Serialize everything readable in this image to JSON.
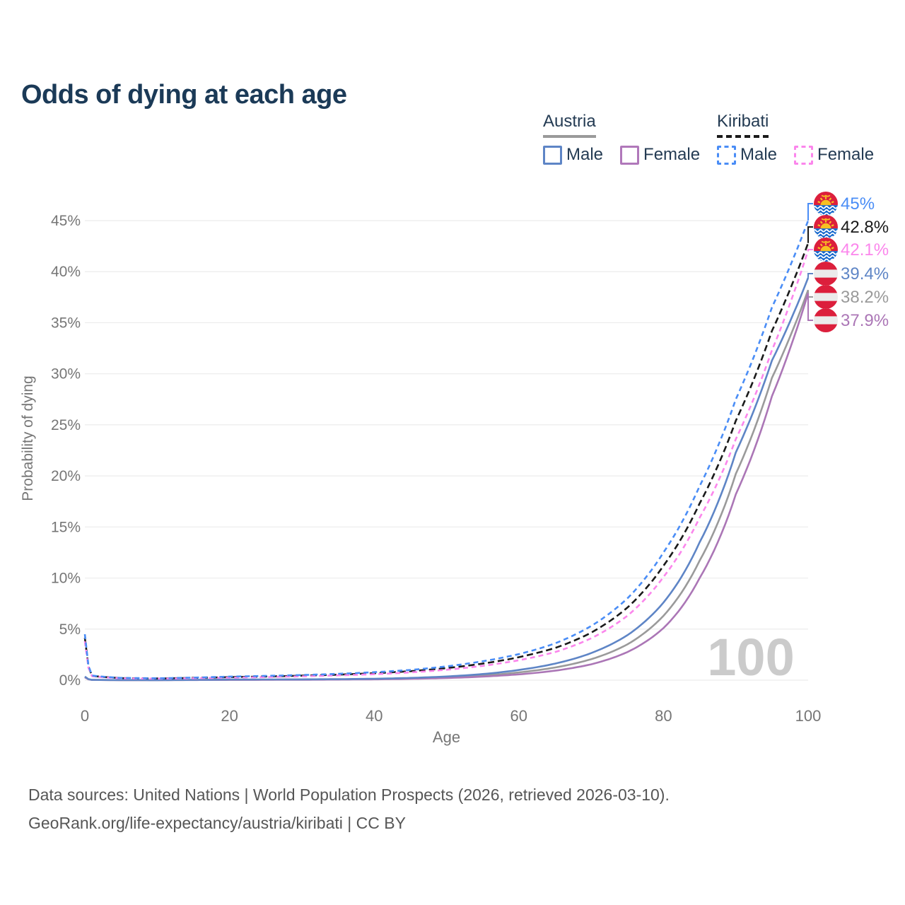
{
  "title": "Odds of dying at each age",
  "legend": {
    "groups": [
      {
        "label": "Austria",
        "underline_color": "#9a9a9a",
        "underline_style": "solid",
        "items": [
          {
            "label": "Male",
            "color": "#5e85c6",
            "dash": false
          },
          {
            "label": "Female",
            "color": "#b078ba",
            "dash": false
          }
        ]
      },
      {
        "label": "Kiribati",
        "underline_color": "#1a1a1a",
        "underline_style": "dashed",
        "items": [
          {
            "label": "Male",
            "color": "#4a8df6",
            "dash": true
          },
          {
            "label": "Female",
            "color": "#fb86ec",
            "dash": true
          }
        ]
      }
    ]
  },
  "chart_data": {
    "type": "line",
    "title": "Odds of dying at each age",
    "xlabel": "Age",
    "ylabel": "Probability of dying",
    "xlim": [
      0,
      100
    ],
    "ylim": [
      0,
      47
    ],
    "x_ticks": [
      0,
      20,
      40,
      60,
      80,
      100
    ],
    "y_ticks": [
      0,
      5,
      10,
      15,
      20,
      25,
      30,
      35,
      40,
      45
    ],
    "y_tick_suffix": "%",
    "grid": true,
    "watermark": "100",
    "series": [
      {
        "id": "austria_total",
        "name": "Austria (both sexes)",
        "country": "Austria",
        "flag": "austria",
        "color": "#9a9a9a",
        "dash": "",
        "end_label": "38.2%",
        "points": {
          "age": [
            0,
            1,
            5,
            10,
            15,
            20,
            25,
            30,
            35,
            40,
            45,
            50,
            55,
            60,
            65,
            70,
            75,
            80,
            85,
            90,
            95,
            100
          ],
          "pct": [
            0.31,
            0.027,
            0.01,
            0.009,
            0.022,
            0.042,
            0.05,
            0.06,
            0.078,
            0.11,
            0.17,
            0.28,
            0.46,
            0.76,
            1.24,
            2.05,
            3.5,
            6.3,
            11.7,
            20.2,
            29.6,
            38.2
          ]
        }
      },
      {
        "id": "austria_female",
        "name": "Austria female",
        "country": "Austria",
        "flag": "austria",
        "color": "#ab76b6",
        "dash": "",
        "end_label": "37.9%",
        "points": {
          "age": [
            0,
            1,
            5,
            10,
            15,
            20,
            25,
            30,
            35,
            40,
            45,
            50,
            55,
            60,
            65,
            70,
            75,
            80,
            85,
            90,
            95,
            100
          ],
          "pct": [
            0.28,
            0.024,
            0.009,
            0.008,
            0.016,
            0.025,
            0.032,
            0.042,
            0.058,
            0.082,
            0.13,
            0.21,
            0.35,
            0.57,
            0.93,
            1.55,
            2.75,
            5.1,
            10.0,
            18.2,
            27.8,
            37.9
          ]
        }
      },
      {
        "id": "austria_male",
        "name": "Austria male",
        "country": "Austria",
        "flag": "austria",
        "color": "#5e85c6",
        "dash": "",
        "end_label": "39.4%",
        "points": {
          "age": [
            0,
            1,
            5,
            10,
            15,
            20,
            25,
            30,
            35,
            40,
            45,
            50,
            55,
            60,
            65,
            70,
            75,
            80,
            85,
            90,
            95,
            100
          ],
          "pct": [
            0.35,
            0.03,
            0.012,
            0.01,
            0.03,
            0.06,
            0.068,
            0.078,
            0.1,
            0.14,
            0.22,
            0.36,
            0.6,
            1.0,
            1.62,
            2.65,
            4.4,
            7.6,
            13.5,
            22.3,
            31.3,
            39.4
          ]
        }
      },
      {
        "id": "kiribati_total",
        "name": "Kiribati (both sexes)",
        "country": "Kiribati",
        "flag": "kiribati",
        "color": "#1a1a1a",
        "dash": "9 5",
        "end_label": "42.8%",
        "points": {
          "age": [
            0,
            1,
            5,
            10,
            15,
            20,
            25,
            30,
            35,
            40,
            45,
            50,
            55,
            60,
            65,
            70,
            75,
            80,
            85,
            90,
            95,
            100
          ],
          "pct": [
            4.15,
            0.42,
            0.2,
            0.165,
            0.22,
            0.3,
            0.36,
            0.44,
            0.54,
            0.68,
            0.88,
            1.18,
            1.62,
            2.25,
            3.15,
            4.65,
            7.1,
            11.2,
            17.3,
            25.4,
            34.2,
            42.8
          ]
        }
      },
      {
        "id": "kiribati_female",
        "name": "Kiribati female",
        "country": "Kiribati",
        "flag": "kiribati",
        "color": "#fb86ec",
        "dash": "7 5",
        "end_label": "42.1%",
        "points": {
          "age": [
            0,
            1,
            5,
            10,
            15,
            20,
            25,
            30,
            35,
            40,
            45,
            50,
            55,
            60,
            65,
            70,
            75,
            80,
            85,
            90,
            95,
            100
          ],
          "pct": [
            3.8,
            0.38,
            0.18,
            0.15,
            0.19,
            0.25,
            0.3,
            0.38,
            0.47,
            0.58,
            0.76,
            1.02,
            1.4,
            1.95,
            2.75,
            4.1,
            6.3,
            10.1,
            15.9,
            23.6,
            32.3,
            42.1
          ]
        }
      },
      {
        "id": "kiribati_male",
        "name": "Kiribati male",
        "country": "Kiribati",
        "flag": "kiribati",
        "color": "#4a8df6",
        "dash": "7 5",
        "end_label": "45%",
        "points": {
          "age": [
            0,
            1,
            5,
            10,
            15,
            20,
            25,
            30,
            35,
            40,
            45,
            50,
            55,
            60,
            65,
            70,
            75,
            80,
            85,
            90,
            95,
            100
          ],
          "pct": [
            4.5,
            0.45,
            0.22,
            0.18,
            0.25,
            0.35,
            0.42,
            0.5,
            0.62,
            0.78,
            1.0,
            1.35,
            1.85,
            2.55,
            3.6,
            5.3,
            8.0,
            12.5,
            19.0,
            27.5,
            36.5,
            45.0
          ]
        }
      }
    ]
  },
  "footer": {
    "line1": "Data sources: United Nations | World Population Prospects (2026, retrieved 2026-03-10).",
    "line2": "GeoRank.org/life-expectancy/austria/kiribati | CC BY"
  },
  "colors": {
    "title": "#1b3a57",
    "legend_text": "#243b53",
    "tick_text": "#767676",
    "gridline": "#ececec",
    "watermark": "#cbcbcb",
    "footer_text": "#565656"
  }
}
